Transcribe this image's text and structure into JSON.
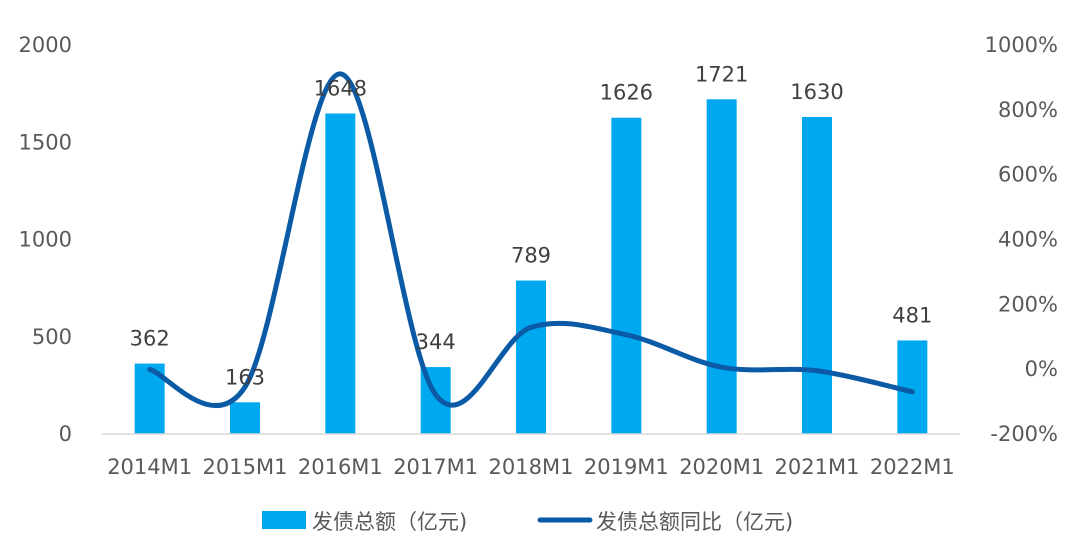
{
  "chart_data": {
    "type": "bar",
    "categories": [
      "2014M1",
      "2015M1",
      "2016M1",
      "2017M1",
      "2018M1",
      "2019M1",
      "2020M1",
      "2021M1",
      "2022M1"
    ],
    "series": [
      {
        "name": "发债总额（亿元)",
        "type": "bar",
        "axis": "left",
        "values": [
          362,
          163,
          1648,
          344,
          789,
          1626,
          1721,
          1630,
          481
        ],
        "color": "#00A8F0"
      },
      {
        "name": "发债总额同比（亿元)",
        "type": "line",
        "axis": "right",
        "values": [
          -1,
          -55,
          911,
          -79,
          129,
          106,
          6,
          -5,
          -70
        ],
        "color": "#0A5AA6"
      }
    ],
    "y_left": {
      "lim": [
        0,
        2000
      ],
      "ticks": [
        "0",
        "500",
        "1000",
        "1500",
        "2000"
      ]
    },
    "y_right": {
      "lim": [
        -200,
        1000
      ],
      "ticks": [
        "-200%",
        "0%",
        "200%",
        "400%",
        "600%",
        "800%",
        "1000%"
      ]
    },
    "data_labels": [
      "362",
      "163",
      "1648",
      "344",
      "789",
      "1626",
      "1721",
      "1630",
      "481"
    ],
    "legend_position": "bottom",
    "grid": false
  }
}
